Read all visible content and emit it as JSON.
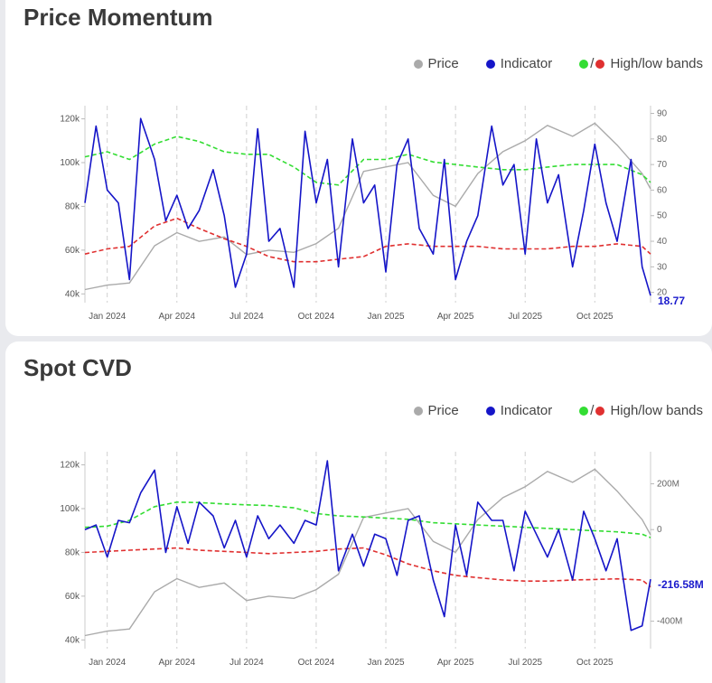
{
  "colors": {
    "price": "#aaaaaa",
    "indicator": "#1515c8",
    "high_band": "#33dd33",
    "low_band": "#e03030"
  },
  "chart_data": [
    {
      "type": "line",
      "title": "Price Momentum",
      "legend": {
        "price": "Price",
        "indicator": "Indicator",
        "bands_slash": "/",
        "bands": "High/low bands"
      },
      "x_ticks": [
        "Jan 2024",
        "Apr 2024",
        "Jul 2024",
        "Oct 2024",
        "Jan 2025",
        "Apr 2025",
        "Jul 2025",
        "Oct 2025"
      ],
      "x_range": [
        2023.92,
        2025.95
      ],
      "y_left_ticks": [
        {
          "v": 40000,
          "label": "40k"
        },
        {
          "v": 60000,
          "label": "60k"
        },
        {
          "v": 80000,
          "label": "80k"
        },
        {
          "v": 100000,
          "label": "100k"
        },
        {
          "v": 120000,
          "label": "120k"
        }
      ],
      "y_left_range": [
        36000,
        126000
      ],
      "y_right_ticks": [
        {
          "v": 20,
          "label": "20"
        },
        {
          "v": 30,
          "label": "30"
        },
        {
          "v": 40,
          "label": "40"
        },
        {
          "v": 50,
          "label": "50"
        },
        {
          "v": 60,
          "label": "60"
        },
        {
          "v": 70,
          "label": "70"
        },
        {
          "v": 80,
          "label": "80"
        },
        {
          "v": 90,
          "label": "90"
        }
      ],
      "y_right_range": [
        16,
        93
      ],
      "current_value": "18.77",
      "price_series": {
        "name": "Price",
        "x": [
          2023.92,
          2024.0,
          2024.08,
          2024.17,
          2024.25,
          2024.33,
          2024.42,
          2024.5,
          2024.58,
          2024.67,
          2024.75,
          2024.83,
          2024.92,
          2025.0,
          2025.08,
          2025.17,
          2025.25,
          2025.33,
          2025.42,
          2025.5,
          2025.58,
          2025.67,
          2025.75,
          2025.83,
          2025.92,
          2025.95
        ],
        "values": [
          42000,
          44000,
          45000,
          62000,
          68000,
          64000,
          66000,
          58000,
          60000,
          59000,
          63000,
          70000,
          96000,
          98000,
          100000,
          85000,
          80000,
          95000,
          105000,
          110000,
          117000,
          112000,
          118000,
          108000,
          95000,
          88000
        ]
      },
      "indicator_series": {
        "name": "Indicator",
        "x": [
          2023.92,
          2023.96,
          2024.0,
          2024.04,
          2024.08,
          2024.12,
          2024.17,
          2024.21,
          2024.25,
          2024.29,
          2024.33,
          2024.38,
          2024.42,
          2024.46,
          2024.5,
          2024.54,
          2024.58,
          2024.62,
          2024.67,
          2024.71,
          2024.75,
          2024.79,
          2024.83,
          2024.88,
          2024.92,
          2024.96,
          2025.0,
          2025.04,
          2025.08,
          2025.12,
          2025.17,
          2025.21,
          2025.25,
          2025.29,
          2025.33,
          2025.38,
          2025.42,
          2025.46,
          2025.5,
          2025.54,
          2025.58,
          2025.62,
          2025.67,
          2025.71,
          2025.75,
          2025.79,
          2025.83,
          2025.88,
          2025.92,
          2025.95
        ],
        "values": [
          55,
          85,
          60,
          55,
          25,
          88,
          72,
          48,
          58,
          45,
          52,
          68,
          50,
          22,
          35,
          84,
          40,
          45,
          22,
          83,
          55,
          72,
          30,
          80,
          55,
          62,
          28,
          70,
          80,
          45,
          35,
          72,
          25,
          40,
          50,
          85,
          62,
          70,
          35,
          80,
          55,
          66,
          30,
          52,
          78,
          55,
          40,
          72,
          30,
          18.77
        ]
      },
      "high_band": {
        "name": "High band",
        "x": [
          2023.92,
          2024.0,
          2024.08,
          2024.17,
          2024.25,
          2024.33,
          2024.42,
          2024.5,
          2024.58,
          2024.67,
          2024.75,
          2024.83,
          2024.92,
          2025.0,
          2025.08,
          2025.17,
          2025.25,
          2025.33,
          2025.42,
          2025.5,
          2025.58,
          2025.67,
          2025.75,
          2025.83,
          2025.92,
          2025.95
        ],
        "values": [
          73,
          75,
          72,
          78,
          81,
          79,
          75,
          74,
          74,
          69,
          63,
          62,
          72,
          72,
          74,
          71,
          70,
          69,
          68,
          68,
          69,
          70,
          70,
          70,
          66,
          63
        ]
      },
      "low_band": {
        "name": "Low band",
        "x": [
          2023.92,
          2024.0,
          2024.08,
          2024.17,
          2024.25,
          2024.33,
          2024.42,
          2024.5,
          2024.58,
          2024.67,
          2024.75,
          2024.83,
          2024.92,
          2025.0,
          2025.08,
          2025.17,
          2025.25,
          2025.33,
          2025.42,
          2025.5,
          2025.58,
          2025.67,
          2025.75,
          2025.83,
          2025.92,
          2025.95
        ],
        "values": [
          35,
          37,
          38,
          46,
          49,
          45,
          41,
          38,
          34,
          32,
          32,
          33,
          34,
          38,
          39,
          38,
          38,
          38,
          37,
          37,
          37,
          38,
          38,
          39,
          38,
          35
        ]
      }
    },
    {
      "type": "line",
      "title": "Spot CVD",
      "legend": {
        "price": "Price",
        "indicator": "Indicator",
        "bands_slash": "/",
        "bands": "High/low bands"
      },
      "x_ticks": [
        "Jan 2024",
        "Apr 2024",
        "Jul 2024",
        "Oct 2024",
        "Jan 2025",
        "Apr 2025",
        "Jul 2025",
        "Oct 2025"
      ],
      "x_range": [
        2023.92,
        2025.95
      ],
      "y_left_ticks": [
        {
          "v": 40000,
          "label": "40k"
        },
        {
          "v": 60000,
          "label": "60k"
        },
        {
          "v": 80000,
          "label": "80k"
        },
        {
          "v": 100000,
          "label": "100k"
        },
        {
          "v": 120000,
          "label": "120k"
        }
      ],
      "y_left_range": [
        36000,
        126000
      ],
      "y_right_ticks": [
        {
          "v": 200,
          "label": "200M"
        },
        {
          "v": 0,
          "label": "0"
        },
        {
          "v": -400,
          "label": "-400M"
        }
      ],
      "y_right_range": [
        -520,
        340
      ],
      "current_value": "-216.58M",
      "price_series": {
        "name": "Price",
        "x": [
          2023.92,
          2024.0,
          2024.08,
          2024.17,
          2024.25,
          2024.33,
          2024.42,
          2024.5,
          2024.58,
          2024.67,
          2024.75,
          2024.83,
          2024.92,
          2025.0,
          2025.08,
          2025.17,
          2025.25,
          2025.33,
          2025.42,
          2025.5,
          2025.58,
          2025.67,
          2025.75,
          2025.83,
          2025.92,
          2025.95
        ],
        "values": [
          42000,
          44000,
          45000,
          62000,
          68000,
          64000,
          66000,
          58000,
          60000,
          59000,
          63000,
          70000,
          96000,
          98000,
          100000,
          85000,
          80000,
          95000,
          105000,
          110000,
          117000,
          112000,
          118000,
          108000,
          95000,
          88000
        ]
      },
      "indicator_series": {
        "name": "Indicator",
        "x": [
          2023.92,
          2023.96,
          2024.0,
          2024.04,
          2024.08,
          2024.12,
          2024.17,
          2024.21,
          2024.25,
          2024.29,
          2024.33,
          2024.38,
          2024.42,
          2024.46,
          2024.5,
          2024.54,
          2024.58,
          2024.62,
          2024.67,
          2024.71,
          2024.75,
          2024.79,
          2024.83,
          2024.88,
          2024.92,
          2024.96,
          2025.0,
          2025.04,
          2025.08,
          2025.12,
          2025.17,
          2025.21,
          2025.25,
          2025.29,
          2025.33,
          2025.38,
          2025.42,
          2025.46,
          2025.5,
          2025.54,
          2025.58,
          2025.62,
          2025.67,
          2025.71,
          2025.75,
          2025.79,
          2025.83,
          2025.88,
          2025.92,
          2025.95
        ],
        "values": [
          0,
          20,
          -120,
          40,
          30,
          160,
          260,
          -100,
          100,
          -60,
          120,
          60,
          -80,
          40,
          -120,
          60,
          -40,
          20,
          -60,
          40,
          20,
          300,
          -180,
          -20,
          -160,
          -20,
          -40,
          -200,
          40,
          60,
          -220,
          -380,
          20,
          -200,
          120,
          40,
          40,
          -180,
          80,
          -20,
          -120,
          0,
          -220,
          80,
          -40,
          -180,
          -40,
          -440,
          -420,
          -216.58
        ]
      },
      "high_band": {
        "name": "High band",
        "x": [
          2023.92,
          2024.0,
          2024.08,
          2024.17,
          2024.25,
          2024.33,
          2024.42,
          2024.5,
          2024.58,
          2024.67,
          2024.75,
          2024.83,
          2024.92,
          2025.0,
          2025.08,
          2025.17,
          2025.25,
          2025.33,
          2025.42,
          2025.5,
          2025.58,
          2025.67,
          2025.75,
          2025.83,
          2025.92,
          2025.95
        ],
        "values": [
          10,
          15,
          40,
          100,
          120,
          118,
          112,
          108,
          105,
          95,
          70,
          60,
          55,
          50,
          45,
          30,
          25,
          20,
          15,
          10,
          5,
          0,
          -5,
          -10,
          -20,
          -35
        ]
      },
      "low_band": {
        "name": "Low band",
        "x": [
          2023.92,
          2024.0,
          2024.08,
          2024.17,
          2024.25,
          2024.33,
          2024.42,
          2024.5,
          2024.58,
          2024.67,
          2024.75,
          2024.83,
          2024.92,
          2025.0,
          2025.08,
          2025.17,
          2025.25,
          2025.33,
          2025.42,
          2025.5,
          2025.58,
          2025.67,
          2025.75,
          2025.83,
          2025.92,
          2025.95
        ],
        "values": [
          -100,
          -95,
          -90,
          -85,
          -80,
          -90,
          -95,
          -100,
          -105,
          -100,
          -95,
          -85,
          -80,
          -110,
          -150,
          -180,
          -200,
          -210,
          -220,
          -225,
          -225,
          -220,
          -218,
          -215,
          -220,
          -250
        ]
      }
    }
  ]
}
